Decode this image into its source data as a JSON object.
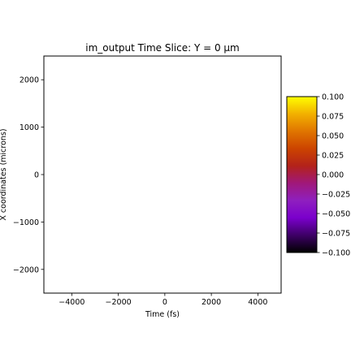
{
  "chart_data": {
    "type": "heatmap",
    "title": "im_output Time Slice: Y = 0 µm",
    "xlabel": "Time (fs)",
    "ylabel": "X coordinates (microns)",
    "xlim": [
      -5200,
      5000
    ],
    "ylim": [
      -2500,
      2500
    ],
    "x_ticks": [
      -4000,
      -2000,
      0,
      2000,
      4000
    ],
    "x_tick_labels": [
      "−4000",
      "−2000",
      "0",
      "2000",
      "4000"
    ],
    "y_ticks": [
      -2000,
      -1000,
      0,
      1000,
      2000
    ],
    "y_tick_labels": [
      "−2000",
      "−1000",
      "0",
      "1000",
      "2000"
    ],
    "grid": false,
    "data_values": [],
    "colorbar": {
      "colormap": "gnuplot-like",
      "vmin": -0.1,
      "vmax": 0.1,
      "ticks": [
        0.1,
        0.075,
        0.05,
        0.025,
        0.0,
        -0.025,
        -0.05,
        -0.075,
        -0.1
      ],
      "tick_labels": [
        "0.100",
        "0.075",
        "0.050",
        "0.025",
        "0.000",
        "−0.025",
        "−0.050",
        "−0.075",
        "−0.100"
      ],
      "stops": [
        "#000000",
        "#3d0066",
        "#7a00cc",
        "#8f1fbf",
        "#a0187a",
        "#b3221a",
        "#cc4400",
        "#e07500",
        "#f2b000",
        "#ffff00"
      ]
    }
  }
}
